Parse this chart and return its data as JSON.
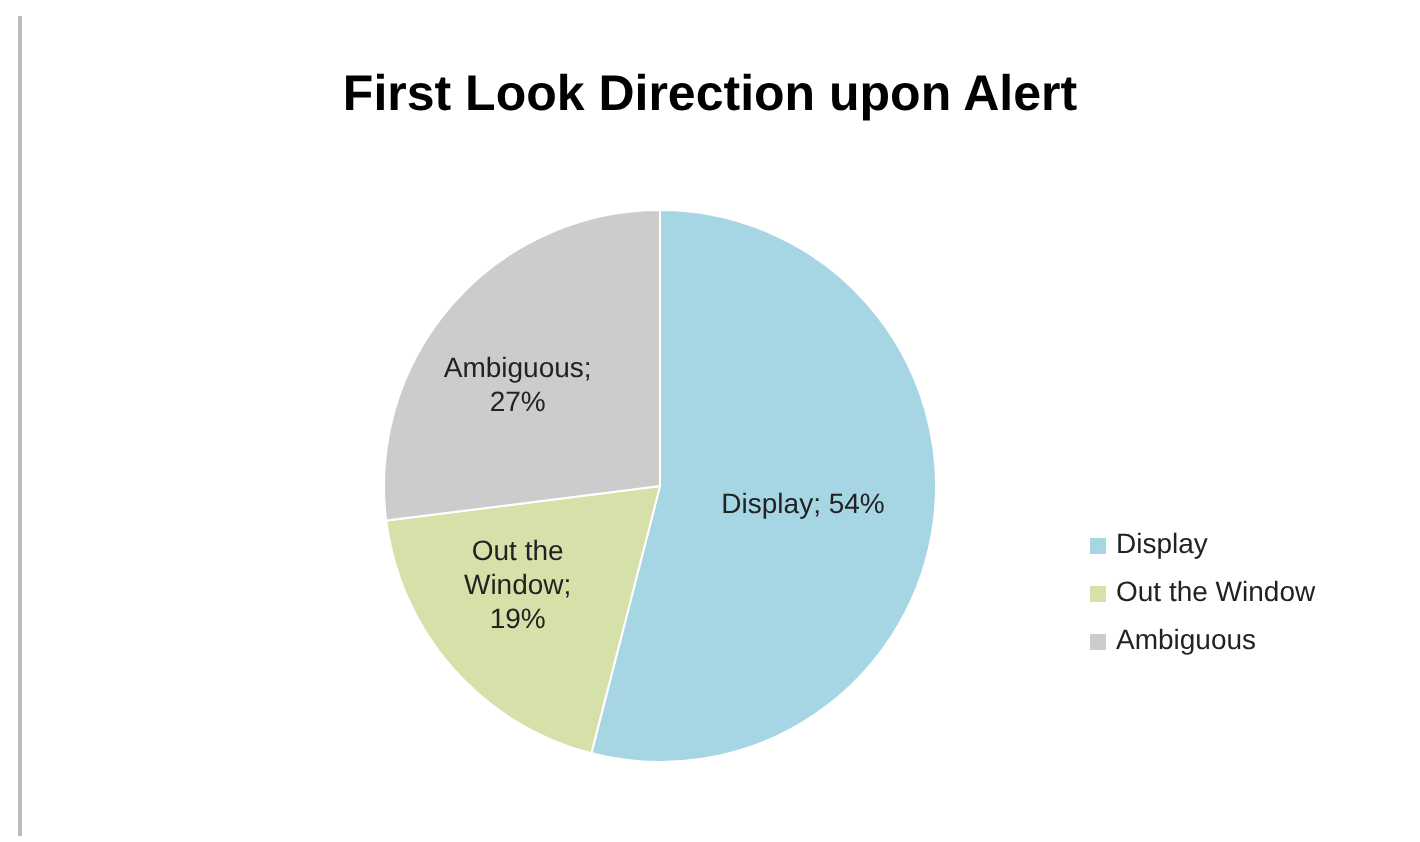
{
  "chart_data": {
    "type": "pie",
    "title": "First Look Direction upon Alert",
    "categories": [
      "Display",
      "Out the Window",
      "Ambiguous"
    ],
    "values": [
      54,
      19,
      27
    ],
    "value_labels": [
      "Display; 54%",
      "Out the Window; 19%",
      "Ambiguous; 27%"
    ],
    "colors": [
      "#a6d6e4",
      "#d6e1aa",
      "#cccccc"
    ],
    "legend": "right"
  }
}
